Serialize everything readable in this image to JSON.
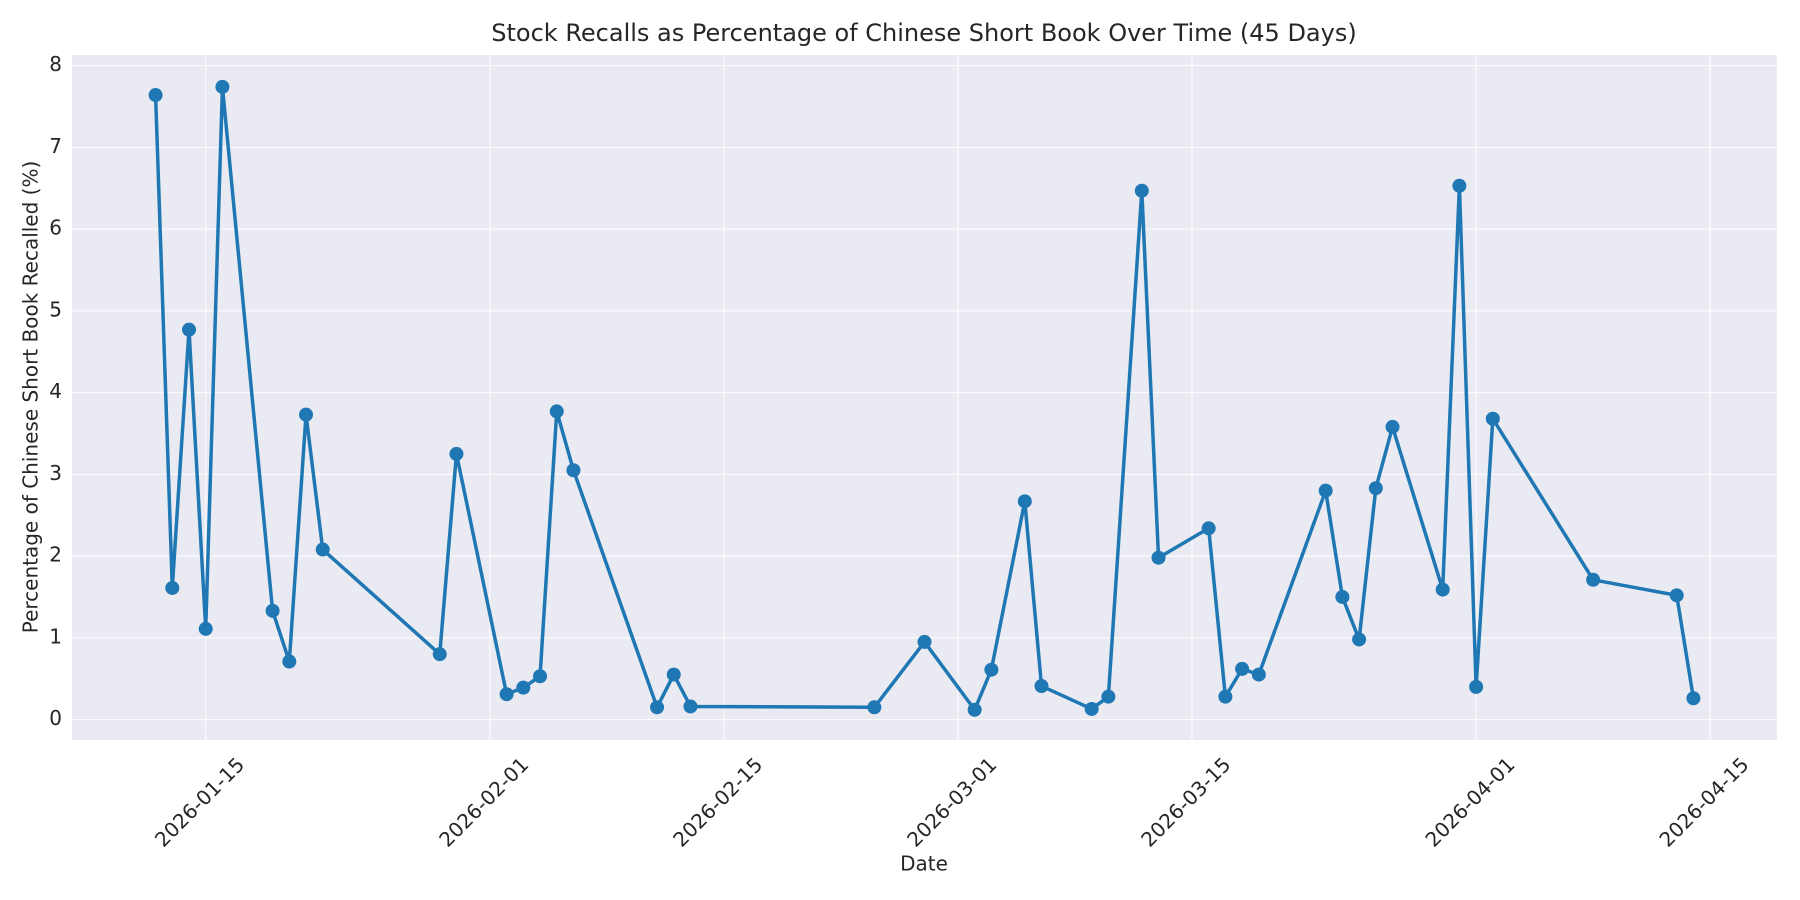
{
  "chart_data": {
    "type": "line",
    "title": "Stock Recalls as Percentage of Chinese Short Book Over Time (45 Days)",
    "x_label": "Date",
    "y_label": "Percentage of Chinese Short Book Recalled (%)",
    "x": [
      "2026-01-12",
      "2026-01-13",
      "2026-01-14",
      "2026-01-15",
      "2026-01-16",
      "2026-01-19",
      "2026-01-20",
      "2026-01-21",
      "2026-01-22",
      "2026-01-29",
      "2026-01-30",
      "2026-02-02",
      "2026-02-03",
      "2026-02-04",
      "2026-02-05",
      "2026-02-06",
      "2026-02-11",
      "2026-02-12",
      "2026-02-13",
      "2026-02-24",
      "2026-02-27",
      "2026-03-02",
      "2026-03-03",
      "2026-03-05",
      "2026-03-06",
      "2026-03-09",
      "2026-03-10",
      "2026-03-12",
      "2026-03-13",
      "2026-03-16",
      "2026-03-17",
      "2026-03-18",
      "2026-03-19",
      "2026-03-23",
      "2026-03-24",
      "2026-03-25",
      "2026-03-26",
      "2026-03-27",
      "2026-03-30",
      "2026-03-31",
      "2026-04-01",
      "2026-04-02",
      "2026-04-08",
      "2026-04-13",
      "2026-04-14"
    ],
    "series": [
      {
        "color": "#1f77b4",
        "values": [
          7.64,
          1.61,
          4.77,
          1.11,
          7.74,
          1.33,
          0.71,
          3.73,
          2.08,
          0.8,
          3.25,
          0.31,
          0.39,
          0.53,
          3.77,
          3.05,
          0.15,
          0.55,
          0.16,
          0.15,
          0.95,
          0.12,
          0.61,
          2.67,
          0.41,
          0.13,
          0.28,
          6.47,
          1.98,
          2.34,
          0.28,
          0.62,
          0.55,
          2.8,
          1.5,
          0.98,
          2.83,
          3.58,
          1.59,
          6.53,
          0.4,
          3.68,
          1.71,
          1.52,
          0.26
        ]
      }
    ],
    "xlim": [
      "2026-01-07",
      "2026-04-19"
    ],
    "xticks": [
      "2026-01-15",
      "2026-02-01",
      "2026-02-15",
      "2026-03-01",
      "2026-03-15",
      "2026-04-01",
      "2026-04-15"
    ],
    "ylim": [
      -0.25,
      8.13
    ],
    "yticks": [
      0,
      1,
      2,
      3,
      4,
      5,
      6,
      7,
      8
    ],
    "grid": true
  }
}
